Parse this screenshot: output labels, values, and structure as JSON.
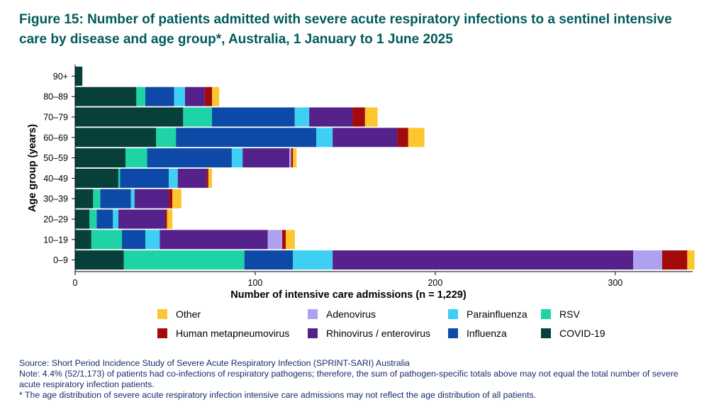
{
  "title": "Figure 15: Number of patients admitted with severe acute respiratory infections to a sentinel intensive care by disease and age group*, Australia, 1 January to 1 June 2025",
  "chart_data": {
    "type": "bar",
    "orientation": "horizontal",
    "stacked": true,
    "xlabel": "Number of intensive care admissions (n = 1,229)",
    "ylabel": "Age group (years)",
    "xlim": [
      0,
      343
    ],
    "xticks": [
      0,
      100,
      200,
      300
    ],
    "categories": [
      "90+",
      "80–89",
      "70–79",
      "60–69",
      "50–59",
      "40–49",
      "30–39",
      "20–29",
      "10–19",
      "0–9"
    ],
    "series": [
      {
        "name": "COVID-19",
        "color": "#07403a",
        "values": [
          4,
          34,
          60,
          45,
          28,
          24,
          10,
          8,
          9,
          27
        ]
      },
      {
        "name": "RSV",
        "color": "#1ed3a6",
        "values": [
          0,
          5,
          16,
          11,
          12,
          1,
          4,
          4,
          17,
          67
        ]
      },
      {
        "name": "Influenza",
        "color": "#0d4aa8",
        "values": [
          0,
          16,
          46,
          78,
          47,
          27,
          17,
          9,
          13,
          27
        ]
      },
      {
        "name": "Parainfluenza",
        "color": "#3dd0f3",
        "values": [
          0,
          6,
          8,
          9,
          6,
          5,
          2,
          3,
          8,
          22
        ]
      },
      {
        "name": "Rhinovirus / enterovirus",
        "color": "#54228a",
        "values": [
          0,
          11,
          24,
          36,
          26,
          16,
          19,
          26,
          60,
          167
        ]
      },
      {
        "name": "Adenovirus",
        "color": "#b0a1f0",
        "values": [
          0,
          0,
          0,
          0,
          1,
          0,
          0,
          0,
          8,
          16
        ]
      },
      {
        "name": "Human metapneumovirus",
        "color": "#a30a0c",
        "values": [
          0,
          4,
          7,
          6,
          1,
          1,
          2,
          1,
          2,
          14
        ]
      },
      {
        "name": "Other",
        "color": "#fcc62e",
        "values": [
          0,
          4,
          7,
          9,
          2,
          2,
          5,
          3,
          5,
          4
        ]
      }
    ],
    "legend": [
      {
        "name": "Other",
        "color": "#fcc62e"
      },
      {
        "name": "Adenovirus",
        "color": "#b0a1f0"
      },
      {
        "name": "Parainfluenza",
        "color": "#3dd0f3"
      },
      {
        "name": "RSV",
        "color": "#1ed3a6"
      },
      {
        "name": "Human metapneumovirus",
        "color": "#a30a0c"
      },
      {
        "name": "Rhinovirus / enterovirus",
        "color": "#54228a"
      },
      {
        "name": "Influenza",
        "color": "#0d4aa8"
      },
      {
        "name": "COVID-19",
        "color": "#07403a"
      }
    ],
    "legend_position": "bottom"
  },
  "notes": {
    "source": "Source: Short Period Incidence Study of Severe Acute Respiratory Infection (SPRINT-SARI) Australia",
    "note": "Note: 4.4% (52/1,173) of patients had co-infections of respiratory pathogens; therefore, the sum of pathogen-specific totals above may not equal the total number of severe acute respiratory infection patients.",
    "footnote": "* The age distribution of severe acute respiratory infection intensive care admissions may not reflect the age distribution of all patients."
  }
}
